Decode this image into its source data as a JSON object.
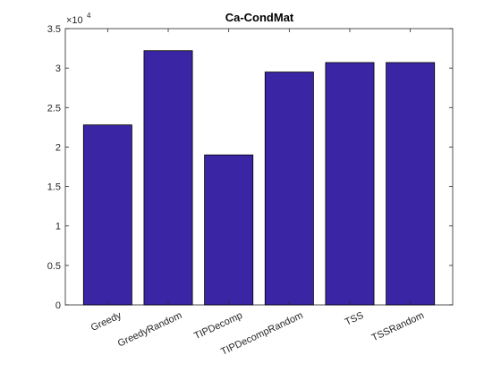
{
  "chart_data": {
    "type": "bar",
    "title": "Ca-CondMat",
    "xlabel": "",
    "ylabel": "",
    "exponent_label": "×10",
    "exponent_power": "4",
    "categories": [
      "Greedy",
      "GreedyRandom",
      "TIPDecomp",
      "TIPDecompRandom",
      "TSS",
      "TSSRandom"
    ],
    "values": [
      22800,
      32200,
      19000,
      29500,
      30700,
      30700
    ],
    "ylim": [
      0,
      35000
    ],
    "yticks": [
      0,
      5000,
      10000,
      15000,
      20000,
      25000,
      30000,
      35000
    ],
    "ytick_labels": [
      "0",
      "0.5",
      "1",
      "1.5",
      "2",
      "2.5",
      "3",
      "3.5"
    ],
    "grid": false,
    "legend": "none",
    "bar_color": "#3a26a4",
    "bar_edge_color": "#000000"
  }
}
